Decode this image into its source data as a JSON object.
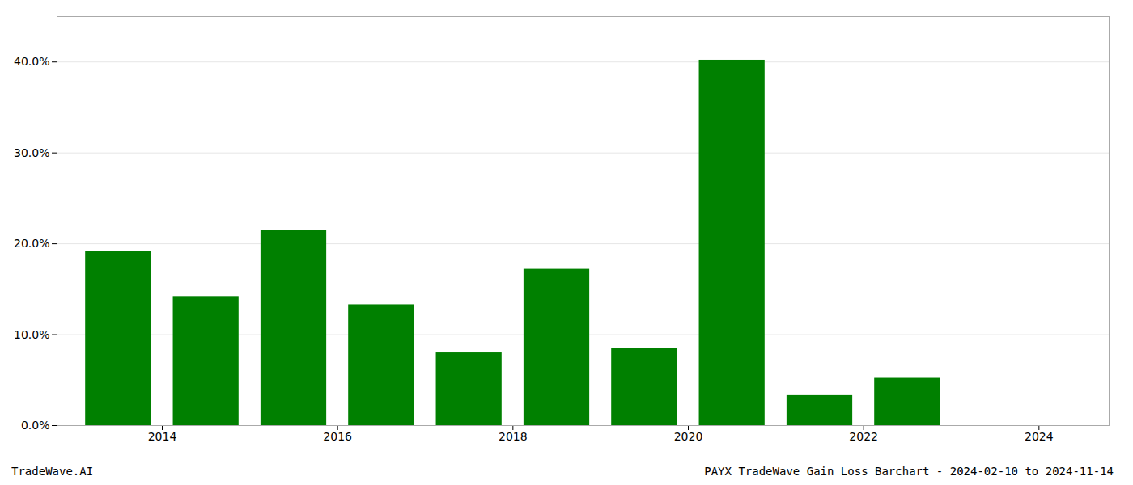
{
  "chart_data": {
    "type": "bar",
    "title": "PAYX TradeWave Gain Loss Barchart - 2024-02-10 to 2024-11-14",
    "annotations": [
      "TradeWave.AI"
    ],
    "x": [
      2013.5,
      2014.5,
      2015.5,
      2016.5,
      2017.5,
      2018.5,
      2019.5,
      2020.5,
      2021.5,
      2022.5,
      2023.5
    ],
    "values": [
      0.192,
      0.142,
      0.215,
      0.133,
      0.08,
      0.172,
      0.085,
      0.402,
      0.033,
      0.052,
      0.0
    ],
    "color": "#008000",
    "xlim": [
      2012.8,
      2024.8
    ],
    "xticks": [
      2014,
      2016,
      2018,
      2020,
      2022,
      2024
    ],
    "ylim": [
      0,
      0.45
    ],
    "yticks": [
      {
        "value": 0.0,
        "label": "0.0%"
      },
      {
        "value": 0.1,
        "label": "10.0%"
      },
      {
        "value": 0.2,
        "label": "20.0%"
      },
      {
        "value": 0.3,
        "label": "30.0%"
      },
      {
        "value": 0.4,
        "label": "40.0%"
      }
    ],
    "grid": true
  }
}
